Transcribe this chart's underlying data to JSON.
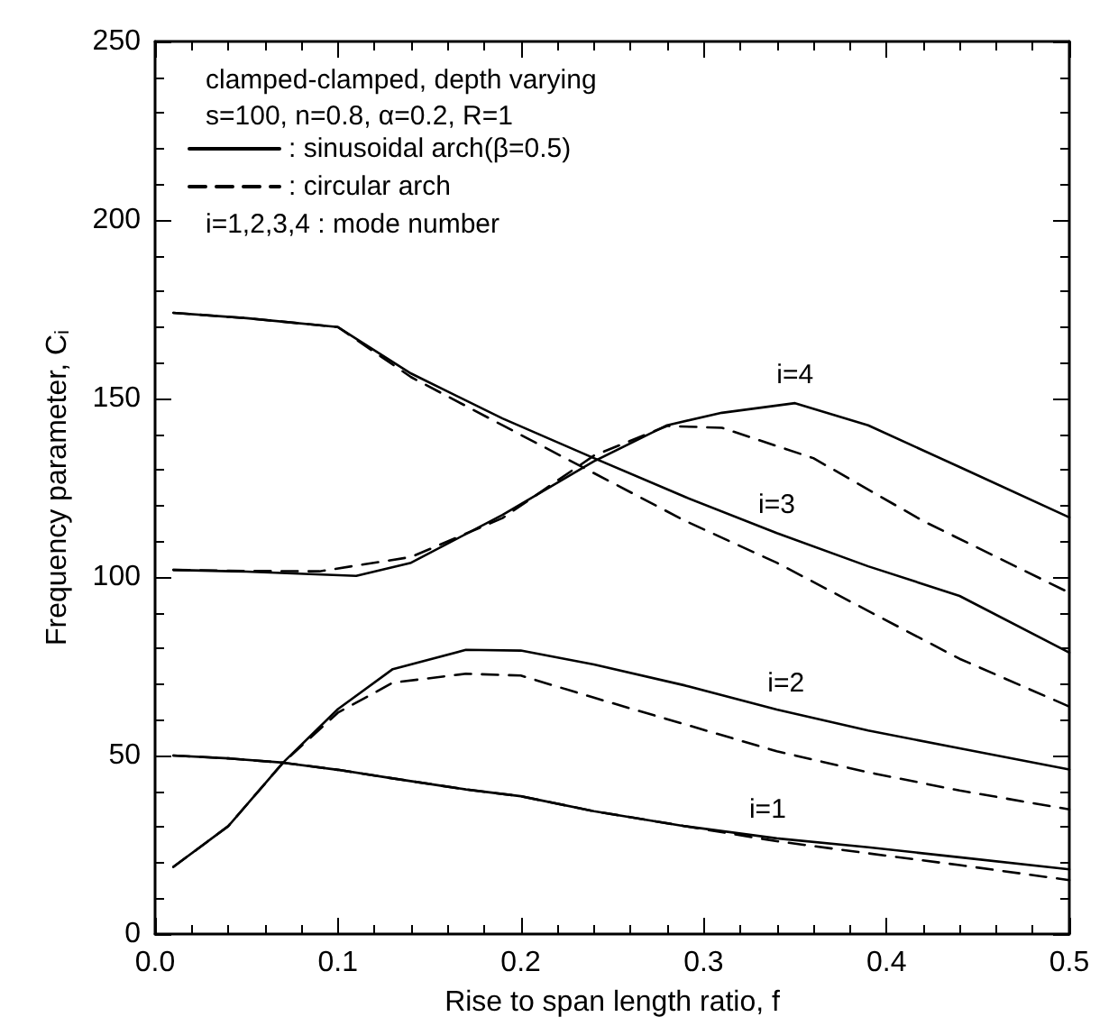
{
  "chart_data": {
    "type": "line",
    "xlabel": "Rise to span length ratio, f",
    "ylabel": "Frequency parameter, C$_{i}$",
    "xlim": [
      0,
      0.5
    ],
    "ylim": [
      0,
      250
    ],
    "xticks": [
      {
        "value": 0,
        "label": "0.0"
      },
      {
        "value": 0.1,
        "label": "0.1"
      },
      {
        "value": 0.2,
        "label": "0.2"
      },
      {
        "value": 0.3,
        "label": "0.3"
      },
      {
        "value": 0.4,
        "label": "0.4"
      },
      {
        "value": 0.5,
        "label": "0.5"
      }
    ],
    "yticks": [
      0,
      50,
      100,
      150,
      200,
      250
    ],
    "grid": false,
    "legend": "top left",
    "marker": "none",
    "annotations": [
      "clamped-clamped, depth varying",
      "s=100, n=0.8, α=0.2, R=1",
      "i=1,2,3,4 : mode number",
      {
        "text": "i=4",
        "x": 0.35,
        "y": 148.7
      },
      {
        "text": "i=3",
        "x": 0.34,
        "y": 112.3
      },
      {
        "text": "i=2",
        "x": 0.345,
        "y": 62.3
      },
      {
        "text": "i=1",
        "x": 0.335,
        "y": 27.1
      }
    ],
    "series": [
      {
        "name": ": sinusoidal arch(β=0.5)",
        "color": "#000000",
        "line_style": "solid",
        "x": [
          0.01,
          0.04,
          0.07,
          0.1,
          0.13,
          0.17,
          0.2,
          0.24,
          0.29,
          0.34,
          0.39,
          0.44,
          0.5
        ],
        "values": [
          50,
          49.2,
          48,
          46,
          43.6,
          40.5,
          38.6,
          34.4,
          30.2,
          26.8,
          24.3,
          21.5,
          18.1
        ]
      },
      {
        "color": "#000000",
        "line_style": "solid",
        "x": [
          0.01,
          0.04,
          0.07,
          0.1,
          0.13,
          0.17,
          0.2,
          0.24,
          0.29,
          0.34,
          0.39,
          0.44,
          0.5
        ],
        "values": [
          18.8,
          30.2,
          48,
          63,
          74.2,
          79.6,
          79.4,
          75.5,
          69.6,
          62.9,
          57,
          52,
          46.1
        ]
      },
      {
        "color": "#000000",
        "line_style": "solid",
        "x": [
          0.01,
          0.05,
          0.1,
          0.14,
          0.19,
          0.24,
          0.29,
          0.34,
          0.39,
          0.44,
          0.5
        ],
        "values": [
          174,
          172.5,
          170,
          157,
          144.4,
          133.3,
          122.4,
          112.3,
          103,
          94.7,
          78.8
        ]
      },
      {
        "color": "#000000",
        "line_style": "solid",
        "x": [
          0.01,
          0.05,
          0.11,
          0.14,
          0.19,
          0.24,
          0.28,
          0.31,
          0.35,
          0.39,
          0.44,
          0.5
        ],
        "values": [
          102,
          101.5,
          100.3,
          104,
          117.4,
          132.4,
          142.5,
          146,
          148.7,
          142.5,
          130.8,
          116.7
        ]
      },
      {
        "name": ": circular arch",
        "color": "#000000",
        "line_style": "dashed",
        "x": [
          0.01,
          0.04,
          0.07,
          0.1,
          0.13,
          0.17,
          0.2,
          0.24,
          0.29,
          0.34,
          0.39,
          0.44,
          0.5
        ],
        "values": [
          50,
          49.2,
          48,
          46,
          43.6,
          40.5,
          38.6,
          34.4,
          30.2,
          26,
          22.6,
          19.3,
          15.1
        ]
      },
      {
        "color": "#000000",
        "line_style": "dashed",
        "x": [
          0.01,
          0.04,
          0.07,
          0.1,
          0.13,
          0.17,
          0.2,
          0.24,
          0.29,
          0.34,
          0.39,
          0.44,
          0.5
        ],
        "values": [
          18.8,
          30.2,
          48,
          62,
          70.4,
          72.9,
          72.4,
          66.2,
          58.7,
          51.2,
          45.3,
          40.2,
          34.9
        ]
      },
      {
        "color": "#000000",
        "line_style": "dashed",
        "x": [
          0.01,
          0.05,
          0.1,
          0.14,
          0.19,
          0.24,
          0.29,
          0.34,
          0.39,
          0.44,
          0.5
        ],
        "values": [
          174,
          172.5,
          170,
          156,
          142.5,
          129.1,
          115.7,
          104,
          90.5,
          77.1,
          63.7
        ]
      },
      {
        "color": "#000000",
        "line_style": "dashed",
        "x": [
          0.01,
          0.05,
          0.09,
          0.14,
          0.19,
          0.24,
          0.28,
          0.31,
          0.36,
          0.42,
          0.5
        ],
        "values": [
          102,
          101.7,
          101.6,
          105.6,
          116.5,
          134,
          142.3,
          141.8,
          133.3,
          115.7,
          95.6
        ]
      }
    ]
  }
}
